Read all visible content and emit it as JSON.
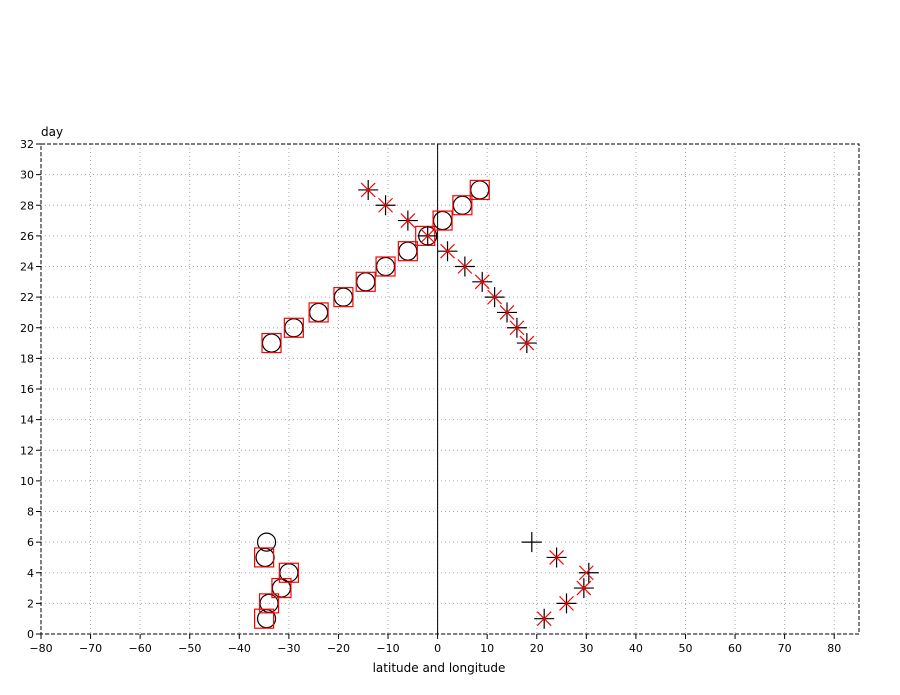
{
  "chart_data": {
    "type": "scatter",
    "title": "",
    "xlabel": "latitude and longitude",
    "ylabel": "day",
    "xlim": [
      -80,
      85
    ],
    "ylim": [
      0,
      32
    ],
    "xticks": [
      -80,
      -70,
      -60,
      -50,
      -40,
      -30,
      -20,
      -10,
      0,
      10,
      20,
      30,
      40,
      50,
      60,
      70,
      80
    ],
    "yticks": [
      0,
      2,
      4,
      6,
      8,
      10,
      12,
      14,
      16,
      18,
      20,
      22,
      24,
      26,
      28,
      30,
      32
    ],
    "grid": true,
    "reference_line_x": 0,
    "series": [
      {
        "marker": "circle",
        "color": "#000000",
        "points": [
          [
            -34.5,
            1
          ],
          [
            -34,
            2
          ],
          [
            -31.5,
            3
          ],
          [
            -30,
            4
          ],
          [
            -34.8,
            5
          ],
          [
            -34.5,
            6
          ],
          [
            -33.5,
            19
          ],
          [
            -29,
            20
          ],
          [
            -24,
            21
          ],
          [
            -19,
            22
          ],
          [
            -14.5,
            23
          ],
          [
            -10.5,
            24
          ],
          [
            -6,
            25
          ],
          [
            -2,
            26
          ],
          [
            1,
            27
          ],
          [
            5,
            28
          ],
          [
            8.5,
            29
          ]
        ]
      },
      {
        "marker": "square",
        "color": "#ff0000",
        "points": [
          [
            -35,
            1
          ],
          [
            -34,
            2
          ],
          [
            -31.5,
            3
          ],
          [
            -30,
            4
          ],
          [
            -35,
            5
          ],
          [
            -33.5,
            19
          ],
          [
            -29,
            20
          ],
          [
            -24,
            21
          ],
          [
            -19,
            22
          ],
          [
            -14.5,
            23
          ],
          [
            -10.5,
            24
          ],
          [
            -6,
            25
          ],
          [
            -2.5,
            26
          ],
          [
            1,
            27
          ],
          [
            5,
            28
          ],
          [
            8.5,
            29
          ]
        ]
      },
      {
        "marker": "plus",
        "color": "#000000",
        "points": [
          [
            21.5,
            1
          ],
          [
            26,
            2
          ],
          [
            29.5,
            3
          ],
          [
            30.5,
            4
          ],
          [
            24,
            5
          ],
          [
            19,
            6
          ],
          [
            18,
            19
          ],
          [
            16,
            20
          ],
          [
            14,
            21
          ],
          [
            11.5,
            22
          ],
          [
            9,
            23
          ],
          [
            5.5,
            24
          ],
          [
            2,
            25
          ],
          [
            -2,
            26
          ],
          [
            -6,
            27
          ],
          [
            -10.5,
            28
          ],
          [
            -14,
            29
          ]
        ]
      },
      {
        "marker": "x",
        "color": "#ff0000",
        "points": [
          [
            21.5,
            1
          ],
          [
            26,
            2
          ],
          [
            29.5,
            3
          ],
          [
            30,
            4
          ],
          [
            24,
            5
          ],
          [
            18,
            19
          ],
          [
            16,
            20
          ],
          [
            14,
            21
          ],
          [
            11.5,
            22
          ],
          [
            9,
            23
          ],
          [
            5.5,
            24
          ],
          [
            2,
            25
          ],
          [
            -2,
            26
          ],
          [
            -6,
            27
          ],
          [
            -10.5,
            28
          ],
          [
            -14,
            29
          ]
        ]
      }
    ]
  }
}
